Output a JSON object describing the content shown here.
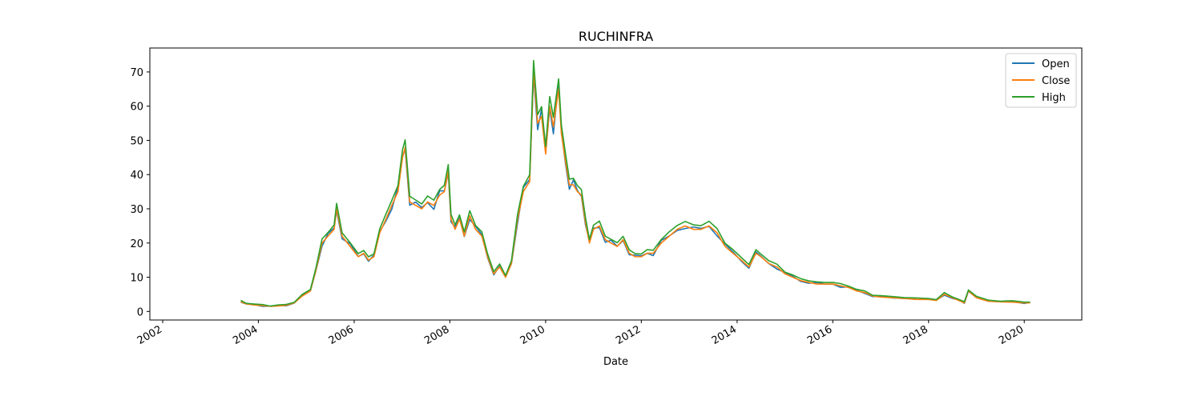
{
  "chart_data": {
    "type": "line",
    "title": "RUCHINFRA",
    "xlabel": "Date",
    "ylabel": "",
    "xlim": [
      "2001-09-25",
      "2021-03-15"
    ],
    "ylim": [
      -2.5,
      77.0
    ],
    "x_ticks": [
      "2002",
      "2004",
      "2006",
      "2008",
      "2010",
      "2012",
      "2014",
      "2016",
      "2018",
      "2020"
    ],
    "y_ticks": [
      0,
      10,
      20,
      30,
      40,
      50,
      60,
      70
    ],
    "grid": false,
    "legend_position": "top-right",
    "series": [
      {
        "name": "Open",
        "color": "#1f77b4"
      },
      {
        "name": "Close",
        "color": "#ff7f0e"
      },
      {
        "name": "High",
        "color": "#2ca02c"
      }
    ],
    "x": [
      "2003-08-20",
      "2003-10-01",
      "2003-12-01",
      "2004-02-01",
      "2004-04-01",
      "2004-06-01",
      "2004-08-01",
      "2004-10-01",
      "2004-12-01",
      "2005-02-01",
      "2005-03-15",
      "2005-05-01",
      "2005-06-15",
      "2005-08-01",
      "2005-08-20",
      "2005-10-01",
      "2005-12-01",
      "2006-02-01",
      "2006-03-15",
      "2006-04-20",
      "2006-06-01",
      "2006-07-15",
      "2006-09-01",
      "2006-10-15",
      "2006-12-01",
      "2007-01-05",
      "2007-01-25",
      "2007-03-01",
      "2007-04-15",
      "2007-06-01",
      "2007-07-15",
      "2007-09-01",
      "2007-10-15",
      "2007-11-20",
      "2007-12-20",
      "2008-01-10",
      "2008-02-10",
      "2008-03-15",
      "2008-04-20",
      "2008-06-01",
      "2008-07-15",
      "2008-09-01",
      "2008-10-15",
      "2008-12-01",
      "2009-01-15",
      "2009-03-01",
      "2009-04-15",
      "2009-06-01",
      "2009-07-15",
      "2009-09-01",
      "2009-10-01",
      "2009-11-01",
      "2009-12-01",
      "2010-01-01",
      "2010-02-01",
      "2010-03-01",
      "2010-04-10",
      "2010-05-01",
      "2010-06-01",
      "2010-07-01",
      "2010-08-01",
      "2010-09-01",
      "2010-10-01",
      "2010-11-01",
      "2010-12-01",
      "2011-01-01",
      "2011-02-15",
      "2011-04-01",
      "2011-05-15",
      "2011-07-01",
      "2011-08-15",
      "2011-10-01",
      "2011-11-15",
      "2012-01-01",
      "2012-02-15",
      "2012-04-01",
      "2012-06-01",
      "2012-08-01",
      "2012-10-01",
      "2012-12-01",
      "2013-02-01",
      "2013-04-01",
      "2013-06-01",
      "2013-08-01",
      "2013-10-01",
      "2013-12-01",
      "2014-02-01",
      "2014-04-01",
      "2014-05-25",
      "2014-07-01",
      "2014-09-01",
      "2014-11-01",
      "2015-01-01",
      "2015-03-01",
      "2015-05-01",
      "2015-07-01",
      "2015-09-01",
      "2015-11-01",
      "2016-01-01",
      "2016-03-01",
      "2016-05-01",
      "2016-07-01",
      "2016-09-01",
      "2016-11-01",
      "2017-01-01",
      "2017-04-01",
      "2017-07-01",
      "2017-10-01",
      "2018-01-01",
      "2018-03-01",
      "2018-05-01",
      "2018-07-01",
      "2018-09-01",
      "2018-10-01",
      "2018-11-01",
      "2019-01-01",
      "2019-04-01",
      "2019-07-01",
      "2019-10-01",
      "2020-01-01",
      "2020-02-15"
    ],
    "values_close": [
      2.8,
      2.2,
      1.9,
      1.7,
      1.5,
      1.6,
      1.8,
      2.5,
      4.5,
      6.0,
      12.0,
      20.0,
      22.0,
      24.0,
      30.0,
      22.0,
      19.0,
      16.0,
      17.0,
      15.0,
      16.0,
      23.0,
      27.0,
      31.0,
      35.0,
      45.0,
      48.0,
      32.0,
      31.0,
      30.0,
      32.0,
      31.0,
      34.0,
      35.0,
      41.0,
      27.0,
      24.0,
      27.0,
      22.0,
      28.0,
      24.0,
      22.0,
      16.0,
      11.0,
      13.0,
      10.0,
      14.0,
      27.0,
      35.0,
      38.0,
      70.0,
      55.0,
      57.0,
      46.0,
      60.0,
      54.0,
      65.0,
      52.0,
      44.0,
      37.0,
      37.0,
      35.0,
      34.0,
      26.0,
      20.0,
      24.0,
      25.0,
      21.0,
      20.0,
      19.0,
      21.0,
      17.0,
      16.0,
      16.0,
      17.0,
      17.0,
      20.0,
      22.0,
      24.0,
      25.0,
      24.0,
      24.0,
      25.0,
      23.0,
      19.0,
      17.0,
      15.0,
      13.0,
      17.0,
      16.0,
      14.0,
      13.0,
      11.0,
      10.0,
      9.0,
      8.5,
      8.0,
      8.0,
      8.0,
      7.5,
      7.0,
      6.0,
      5.5,
      4.5,
      4.2,
      4.0,
      3.8,
      3.5,
      3.5,
      3.2,
      5.0,
      4.0,
      3.0,
      2.5,
      6.0,
      4.0,
      3.0,
      2.8,
      2.7,
      2.5,
      2.5
    ]
  }
}
